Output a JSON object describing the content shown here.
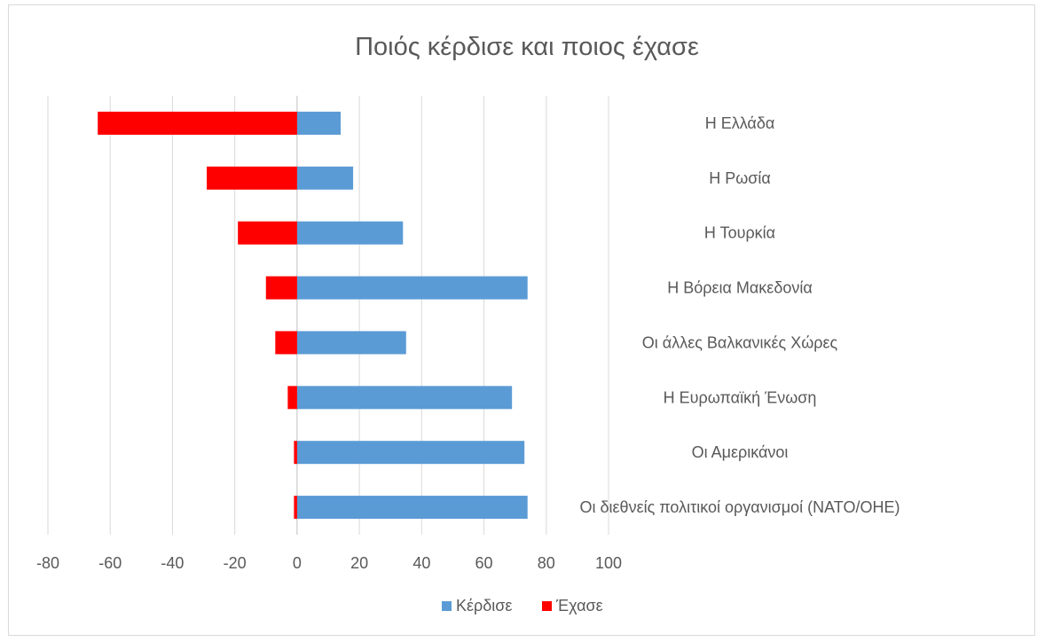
{
  "chart_data": {
    "type": "bar",
    "orientation": "horizontal",
    "title": "Ποιός κέρδισε και ποιος έχασε",
    "categories": [
      "Η Ελλάδα",
      "Η Ρωσία",
      "Η Τουρκία",
      "Η Βόρεια Μακεδονία",
      "Οι άλλες Βαλκανικές Χώρες",
      "Η Ευρωπαϊκή Ένωση",
      "Οι Αμερικάνοι",
      "Οι διεθνείς πολιτικοί οργανισμοί (ΝΑΤΟ/ΟΗΕ)"
    ],
    "series": [
      {
        "name": "Κέρδισε",
        "color": "#5b9bd5",
        "values": [
          14,
          18,
          34,
          74,
          35,
          69,
          73,
          74
        ]
      },
      {
        "name": "Έχασε",
        "color": "#ff0000",
        "values": [
          -64,
          -29,
          -19,
          -10,
          -7,
          -3,
          -1,
          -1
        ]
      }
    ],
    "xlim": [
      -80,
      100
    ],
    "xticks": [
      "-80",
      "-60",
      "-40",
      "-20",
      "0",
      "20",
      "40",
      "60",
      "80",
      "100"
    ],
    "grid": "vertical",
    "legend": "bottom",
    "category_labels": "right"
  }
}
